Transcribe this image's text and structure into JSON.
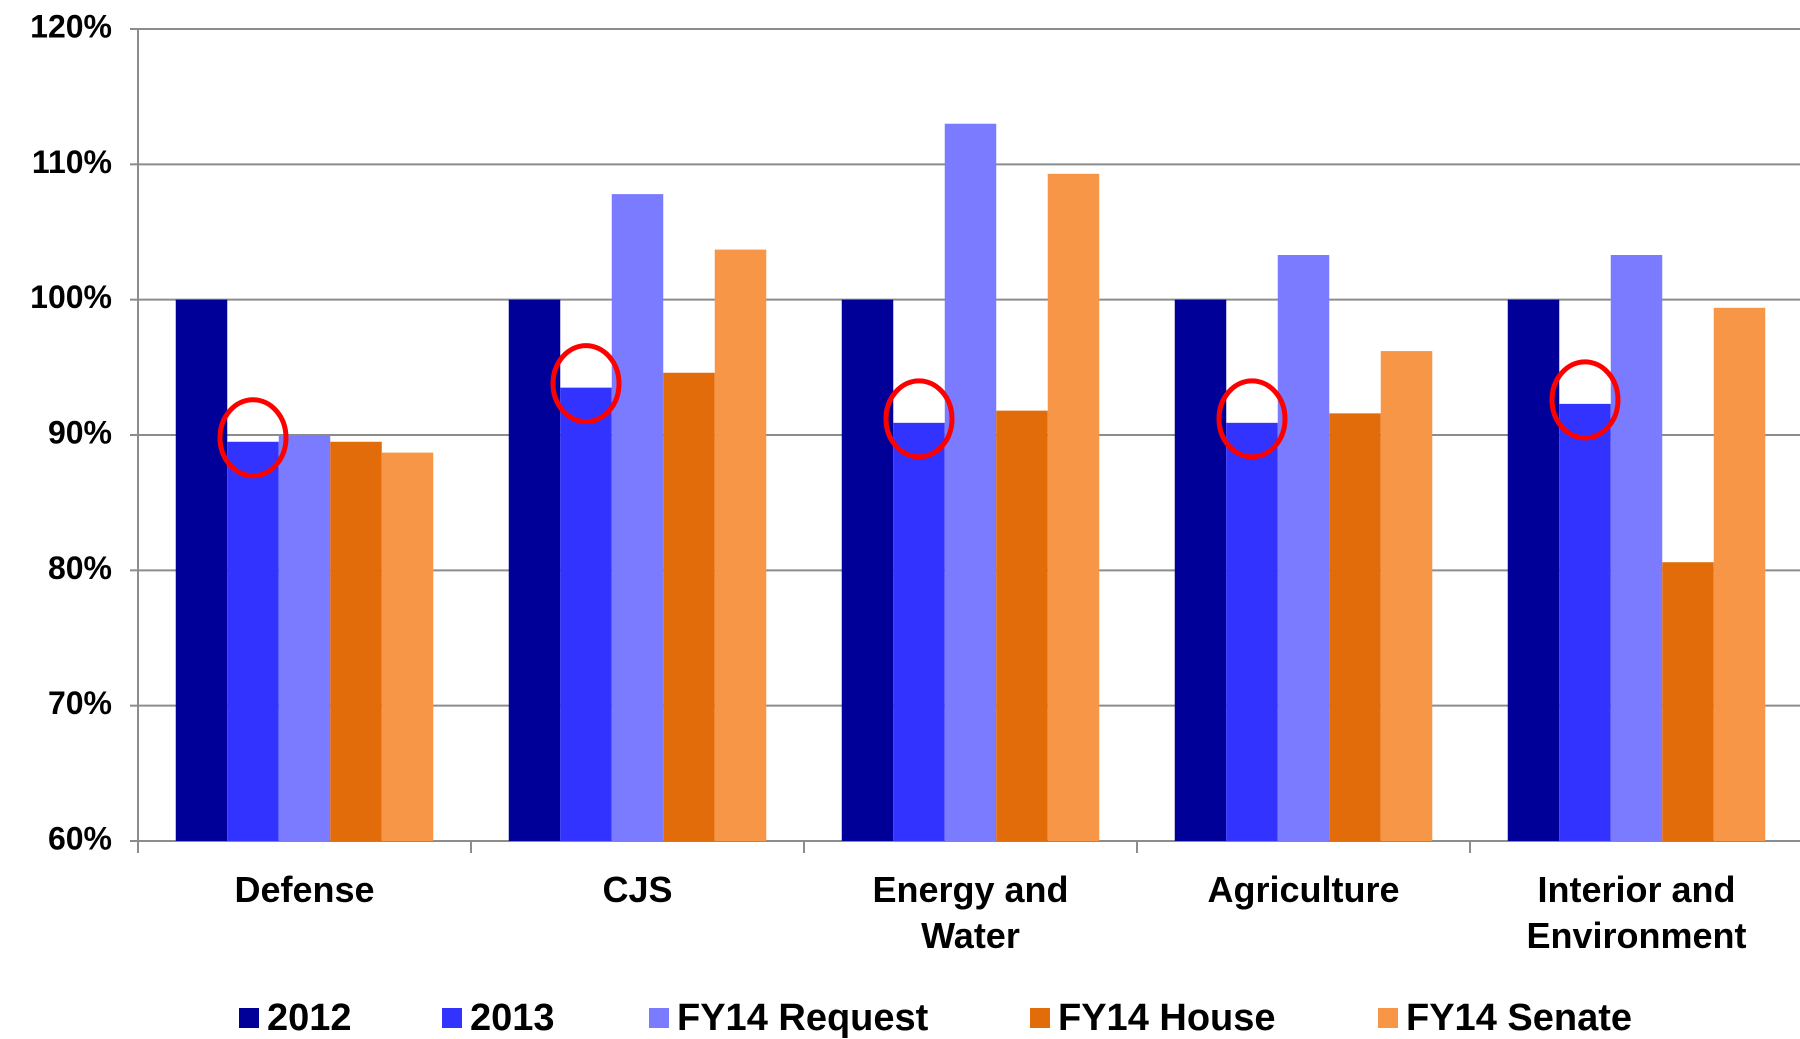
{
  "chart_data": {
    "type": "bar",
    "categories": [
      "Defense",
      "CJS",
      "Energy and Water",
      "Agriculture",
      "Interior and Environment"
    ],
    "series": [
      {
        "name": "2012",
        "color": "#000099",
        "values": [
          100,
          100,
          100,
          100,
          100
        ]
      },
      {
        "name": "2013",
        "color": "#3333ff",
        "values": [
          89.5,
          93.5,
          90.9,
          90.9,
          92.3
        ]
      },
      {
        "name": "FY14 Request",
        "color": "#7b7bff",
        "values": [
          90,
          107.8,
          113,
          103.3,
          103.3
        ]
      },
      {
        "name": "FY14 House",
        "color": "#e36c0a",
        "values": [
          89.5,
          94.6,
          91.8,
          91.6,
          80.6
        ]
      },
      {
        "name": "FY14 Senate",
        "color": "#f79646",
        "values": [
          88.7,
          103.7,
          109.3,
          96.2,
          99.4
        ]
      }
    ],
    "ylim": [
      60,
      120
    ],
    "yticks": [
      {
        "value": 60,
        "label": "60%"
      },
      {
        "value": 70,
        "label": "70%"
      },
      {
        "value": 80,
        "label": "80%"
      },
      {
        "value": 90,
        "label": "90%"
      },
      {
        "value": 100,
        "label": "100%"
      },
      {
        "value": 110,
        "label": "110%"
      },
      {
        "value": 120,
        "label": "120%"
      }
    ],
    "grid": true,
    "legend": "bottom"
  }
}
